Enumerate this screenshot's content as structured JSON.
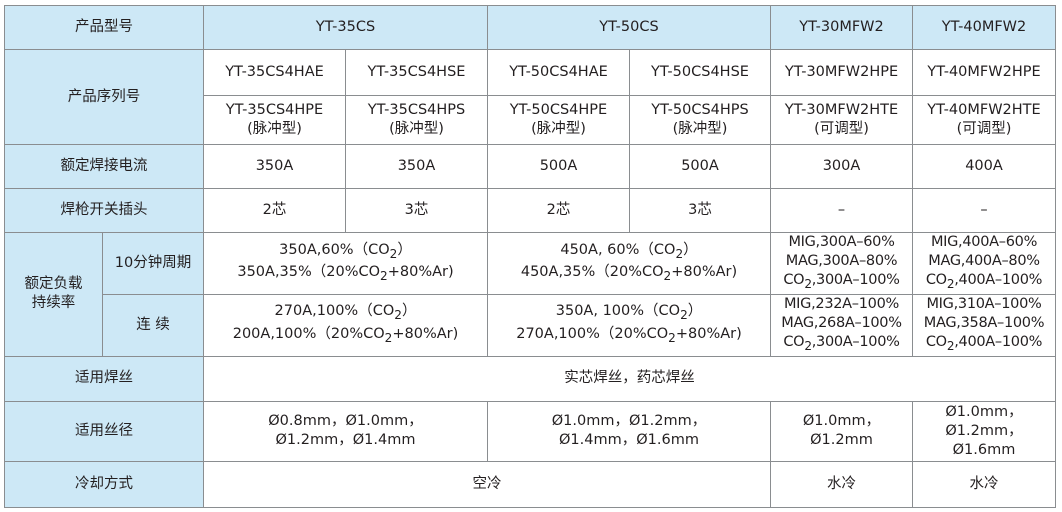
{
  "colors": {
    "header_bg": "#cde8f6",
    "body_bg": "#ffffff",
    "border": "#8a8d90",
    "text": "#231f20"
  },
  "header": {
    "label": "产品型号",
    "models": [
      "YT-35CS",
      "YT-50CS",
      "YT-30MFW2",
      "YT-40MFW2"
    ]
  },
  "serial": {
    "label": "产品序列号",
    "row1": [
      "YT-35CS4HAE",
      "YT-35CS4HSE",
      "YT-50CS4HAE",
      "YT-50CS4HSE",
      "YT-30MFW2HPE",
      "YT-40MFW2HPE"
    ],
    "row2": [
      {
        "code": "YT-35CS4HPE",
        "type": "(脉冲型)"
      },
      {
        "code": "YT-35CS4HPS",
        "type": "(脉冲型)"
      },
      {
        "code": "YT-50CS4HPE",
        "type": "(脉冲型)"
      },
      {
        "code": "YT-50CS4HPS",
        "type": "(脉冲型)"
      },
      {
        "code": "YT-30MFW2HTE",
        "type": "(可调型)"
      },
      {
        "code": "YT-40MFW2HTE",
        "type": "(可调型)"
      }
    ]
  },
  "current": {
    "label": "额定焊接电流",
    "values": [
      "350A",
      "350A",
      "500A",
      "500A",
      "300A",
      "400A"
    ]
  },
  "plug": {
    "label": "焊枪开关插头",
    "values": [
      "2芯",
      "3芯",
      "2芯",
      "3芯",
      "–",
      "–"
    ]
  },
  "duty": {
    "label1": "额定负载",
    "label2": "持续率",
    "cycle": {
      "label": "10分钟周期",
      "c35": [
        "350A,60%（CO",
        "）",
        "350A,35%（20%CO",
        "+80%Ar)"
      ],
      "c50": [
        "450A, 60%（CO",
        "）",
        "450A,35%（20%CO",
        "+80%Ar)"
      ],
      "c30": [
        "MIG,300A–60%",
        "MAG,300A–80%",
        "CO",
        ",300A–100%"
      ],
      "c40": [
        "MIG,400A–60%",
        "MAG,400A–80%",
        "CO",
        ",400A–100%"
      ]
    },
    "continuous": {
      "label": "连   续",
      "c35": [
        "270A,100%（CO",
        "）",
        "200A,100%（20%CO",
        "+80%Ar)"
      ],
      "c50": [
        "350A, 100%（CO",
        "）",
        "270A,100%（20%CO",
        "+80%Ar)"
      ],
      "c30": [
        "MIG,232A–100%",
        "MAG,268A–100%",
        "CO",
        ",300A–100%"
      ],
      "c40": [
        "MIG,310A–100%",
        "MAG,358A–100%",
        "CO",
        ",400A–100%"
      ]
    }
  },
  "wire": {
    "label": "适用焊丝",
    "value": "实芯焊丝，药芯焊丝"
  },
  "diameter": {
    "label": "适用丝径",
    "c35": [
      "Ø0.8mm，Ø1.0mm，",
      "Ø1.2mm，Ø1.4mm"
    ],
    "c50": [
      "Ø1.0mm，Ø1.2mm，",
      "Ø1.4mm，Ø1.6mm"
    ],
    "c30": [
      "Ø1.0mm，",
      "Ø1.2mm"
    ],
    "c40": [
      "Ø1.0mm，",
      "Ø1.2mm，",
      "Ø1.6mm"
    ]
  },
  "cooling": {
    "label": "冷却方式",
    "values": [
      "空冷",
      "水冷",
      "水冷"
    ]
  },
  "subscript": "2"
}
